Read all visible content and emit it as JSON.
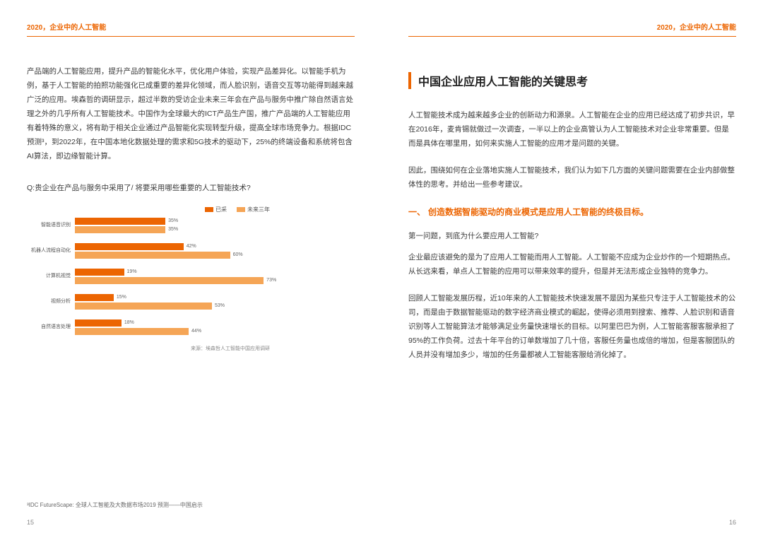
{
  "header": "2020，企业中的人工智能",
  "left": {
    "para1": "产品端的人工智能应用，提升产品的智能化水平，优化用户体验，实现产品差异化。以智能手机为例，基于人工智能的拍照功能强化已成重要的差异化领域，而人脸识别，语音交互等功能得到越来越广泛的应用。埃森哲的调研显示，超过半数的受访企业未来三年会在产品与服务中推广除自然语言处理之外的几乎所有人工智能技术。中国作为全球最大的ICT产品生产国，推广产品端的人工智能应用有着特殊的意义，将有助于相关企业通过产品智能化实现转型升级，提高全球市场竞争力。根据IDC预测³，到2022年，在中国本地化数据处理的需求和5G技术的驱动下，25%的终端设备和系统将包含AI算法，即边缘智能计算。",
    "question": "Q:贵企业在产品与服务中采用了/ 将要采用哪些重要的人工智能技术?",
    "footnote": "³IDC FutureScape: 全球人工智能及大数据市场2019 预测——中国启示",
    "pagenum": "15"
  },
  "chart": {
    "legend": [
      {
        "label": "已采",
        "color": "#ec6502"
      },
      {
        "label": "未来三年",
        "color": "#f5a556"
      }
    ],
    "color_now": "#ec6502",
    "color_future": "#f5a556",
    "max_pct": 100,
    "rows": [
      {
        "label": "智能语音识别",
        "now": 35,
        "future": 35
      },
      {
        "label": "机器人流程自动化",
        "now": 42,
        "future": 60
      },
      {
        "label": "计算机视觉",
        "now": 19,
        "future": 73
      },
      {
        "label": "视频分析",
        "now": 15,
        "future": 53
      },
      {
        "label": "自然语言处理",
        "now": 18,
        "future": 44
      }
    ],
    "source": "来源：埃森哲人工智能中国应用调研"
  },
  "right": {
    "title": "中国企业应用人工智能的关键思考",
    "para1": "人工智能技术成为越来越多企业的创新动力和源泉。人工智能在企业的应用已经达成了初步共识，早在2016年，麦肯锡就做过一次调查，一半以上的企业高管认为人工智能技术对企业非常重要。但是而是具体在哪里用，如何来实施人工智能的应用才是问题的关键。",
    "para2": "因此，围绕如何在企业落地实施人工智能技术，我们认为如下几方面的关键问题需要在企业内部做整体性的思考。并给出一些参考建议。",
    "subnum": "一、",
    "subheading": "创造数据智能驱动的商业模式是应用人工智能的终极目标。",
    "q": "第一问题，到底为什么要应用人工智能?",
    "para3": "企业最应该避免的是为了应用人工智能而用人工智能。人工智能不应成为企业炒作的一个短期热点。从长远来看，单点人工智能的应用可以带来效率的提升，但是并无法形成企业独特的竞争力。",
    "para4": "回顾人工智能发展历程，近10年来的人工智能技术快速发展不是因为某些只专注于人工智能技术的公司，而是由于数据智能驱动的数字经济商业模式的崛起，使得必须用到搜索、推荐、人脸识别和语音识别等人工智能算法才能够满足业务量快速增长的目标。以阿里巴巴为例，人工智能客服客服承担了95%的工作负荷。过去十年平台的订单数增加了几十倍，客服任务量也成倍的增加，但是客服团队的人员并没有增加多少，增加的任务量都被人工智能客服给消化掉了。",
    "pagenum": "16"
  }
}
